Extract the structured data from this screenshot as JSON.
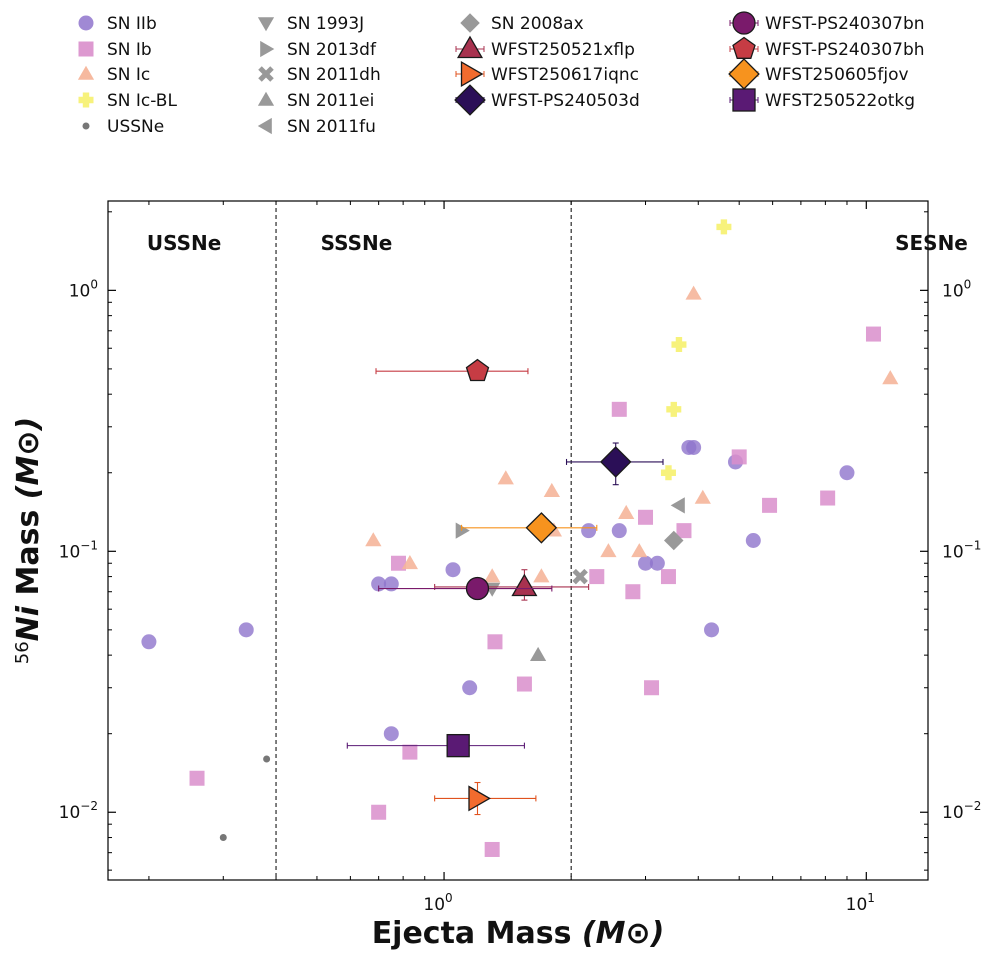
{
  "chart_data": {
    "type": "scatter",
    "xlabel": "Ejecta Mass",
    "xlabel_unit": "(M⊙)",
    "ylabel_prefix": "56",
    "ylabel_ni": "Ni",
    "ylabel_mass": "Mass",
    "ylabel_unit": "(M⊙)",
    "x_scale": "log",
    "y_scale": "log",
    "xlim": [
      0.16,
      14
    ],
    "ylim": [
      0.0055,
      2.2
    ],
    "x_ticks": [
      {
        "value": 1,
        "base": "10",
        "exp": "0"
      },
      {
        "value": 10,
        "base": "10",
        "exp": "1"
      }
    ],
    "y_ticks": [
      {
        "value": 0.01,
        "base": "10",
        "exp": "−2"
      },
      {
        "value": 0.1,
        "base": "10",
        "exp": "−1"
      },
      {
        "value": 1,
        "base": "10",
        "exp": "0"
      }
    ],
    "region_dividers": [
      0.4,
      2.0
    ],
    "regions": [
      {
        "label": "USSNe",
        "x": 0.2
      },
      {
        "label": "SSSNe",
        "x": 0.51
      },
      {
        "label": "SESNe",
        "x": 8.5
      }
    ],
    "legend": {
      "placement": "top, outside plot, 4 columns"
    },
    "series": [
      {
        "name": "SN IIb",
        "marker": "circle",
        "color": "#8f74cc",
        "opacity": 0.8,
        "points": [
          [
            0.2,
            0.045
          ],
          [
            0.34,
            0.05
          ],
          [
            0.7,
            0.075
          ],
          [
            0.75,
            0.075
          ],
          [
            0.75,
            0.02
          ],
          [
            1.05,
            0.085
          ],
          [
            1.15,
            0.03
          ],
          [
            2.2,
            0.12
          ],
          [
            2.6,
            0.12
          ],
          [
            3.0,
            0.09
          ],
          [
            3.2,
            0.09
          ],
          [
            3.8,
            0.25
          ],
          [
            3.9,
            0.25
          ],
          [
            4.3,
            0.05
          ],
          [
            4.9,
            0.22
          ],
          [
            5.4,
            0.11
          ],
          [
            9.0,
            0.2
          ]
        ]
      },
      {
        "name": "SN Ib",
        "marker": "square",
        "color": "#d98ecb",
        "opacity": 0.85,
        "points": [
          [
            0.26,
            0.0135
          ],
          [
            0.7,
            0.01
          ],
          [
            0.78,
            0.09
          ],
          [
            0.83,
            0.017
          ],
          [
            1.3,
            0.0072
          ],
          [
            1.32,
            0.045
          ],
          [
            1.55,
            0.031
          ],
          [
            2.3,
            0.08
          ],
          [
            2.6,
            0.35
          ],
          [
            2.8,
            0.07
          ],
          [
            3.0,
            0.135
          ],
          [
            3.1,
            0.03
          ],
          [
            3.4,
            0.08
          ],
          [
            3.7,
            0.12
          ],
          [
            5.0,
            0.23
          ],
          [
            5.9,
            0.15
          ],
          [
            8.1,
            0.16
          ],
          [
            10.4,
            0.68
          ]
        ]
      },
      {
        "name": "SN Ic",
        "marker": "triangle-up",
        "color": "#f5b59a",
        "opacity": 0.9,
        "points": [
          [
            0.68,
            0.11
          ],
          [
            0.83,
            0.09
          ],
          [
            1.3,
            0.08
          ],
          [
            1.4,
            0.19
          ],
          [
            1.7,
            0.08
          ],
          [
            1.8,
            0.17
          ],
          [
            1.82,
            0.12
          ],
          [
            2.45,
            0.1
          ],
          [
            2.7,
            0.14
          ],
          [
            2.9,
            0.1
          ],
          [
            3.9,
            0.97
          ],
          [
            4.1,
            0.16
          ],
          [
            11.4,
            0.46
          ]
        ]
      },
      {
        "name": "SN Ic-BL",
        "marker": "plus",
        "color": "#f7f27c",
        "opacity": 1,
        "points": [
          [
            3.4,
            0.2
          ],
          [
            3.5,
            0.35
          ],
          [
            3.6,
            0.62
          ],
          [
            4.6,
            1.75
          ]
        ]
      },
      {
        "name": "USSNe",
        "marker": "dot",
        "color": "#777777",
        "opacity": 1,
        "points": [
          [
            0.3,
            0.008
          ],
          [
            0.38,
            0.016
          ]
        ]
      },
      {
        "name": "SN 1993J",
        "marker": "triangle-down",
        "color": "#999999",
        "opacity": 1,
        "points": [
          [
            1.3,
            0.072
          ]
        ]
      },
      {
        "name": "SN 2013df",
        "marker": "triangle-right",
        "color": "#999999",
        "opacity": 1,
        "points": [
          [
            1.1,
            0.12
          ]
        ]
      },
      {
        "name": "SN 2011dh",
        "marker": "x",
        "color": "#999999",
        "opacity": 1,
        "points": [
          [
            2.1,
            0.08
          ]
        ]
      },
      {
        "name": "SN 2011ei",
        "marker": "triangle-up",
        "color": "#999999",
        "opacity": 1,
        "points": [
          [
            1.67,
            0.04
          ]
        ]
      },
      {
        "name": "SN 2011fu",
        "marker": "triangle-left",
        "color": "#999999",
        "opacity": 1,
        "points": [
          [
            3.6,
            0.15
          ]
        ]
      },
      {
        "name": "SN 2008ax",
        "marker": "diamond",
        "color": "#999999",
        "opacity": 1,
        "points": [
          [
            3.5,
            0.11
          ]
        ]
      },
      {
        "name": "WFST250521xflp",
        "marker": "triangle-up-large",
        "color": "#a8324f",
        "errcolor": "#a8324f",
        "opacity": 1,
        "points": [
          [
            1.55,
            0.073,
            0.95,
            2.2,
            0.065,
            0.085
          ]
        ]
      },
      {
        "name": "WFST250617iqnc",
        "marker": "triangle-right-large",
        "color": "#f26b2e",
        "errcolor": "#e0531f",
        "opacity": 1,
        "points": [
          [
            1.2,
            0.0113,
            0.95,
            1.65,
            0.0098,
            0.013
          ]
        ]
      },
      {
        "name": "WFST-PS240503d",
        "marker": "diamond-large",
        "color": "#2b0f57",
        "errcolor": "#2b0f57",
        "opacity": 1,
        "points": [
          [
            2.55,
            0.22,
            1.95,
            3.3,
            0.18,
            0.26
          ]
        ]
      },
      {
        "name": "WFST-PS240307bn",
        "marker": "circle-large",
        "color": "#7a1a6b",
        "errcolor": "#7a1a6b",
        "opacity": 1,
        "points": [
          [
            1.2,
            0.072,
            0.7,
            1.8,
            0.072,
            0.072
          ]
        ]
      },
      {
        "name": "WFST-PS240307bh",
        "marker": "pentagon-large",
        "color": "#c63c44",
        "errcolor": "#c63c44",
        "opacity": 1,
        "points": [
          [
            1.2,
            0.49,
            0.69,
            1.58,
            0.49,
            0.49
          ]
        ]
      },
      {
        "name": "WFST250605fjov",
        "marker": "diamond-large",
        "color": "#f7931e",
        "errcolor": "#f7931e",
        "opacity": 1,
        "points": [
          [
            1.7,
            0.123,
            1.1,
            2.3,
            0.123,
            0.123
          ]
        ]
      },
      {
        "name": "WFST250522otkg",
        "marker": "square-large",
        "color": "#5a1a74",
        "errcolor": "#5a1a74",
        "opacity": 1,
        "points": [
          [
            1.08,
            0.018,
            0.59,
            1.55,
            0.018,
            0.018
          ]
        ]
      }
    ]
  }
}
